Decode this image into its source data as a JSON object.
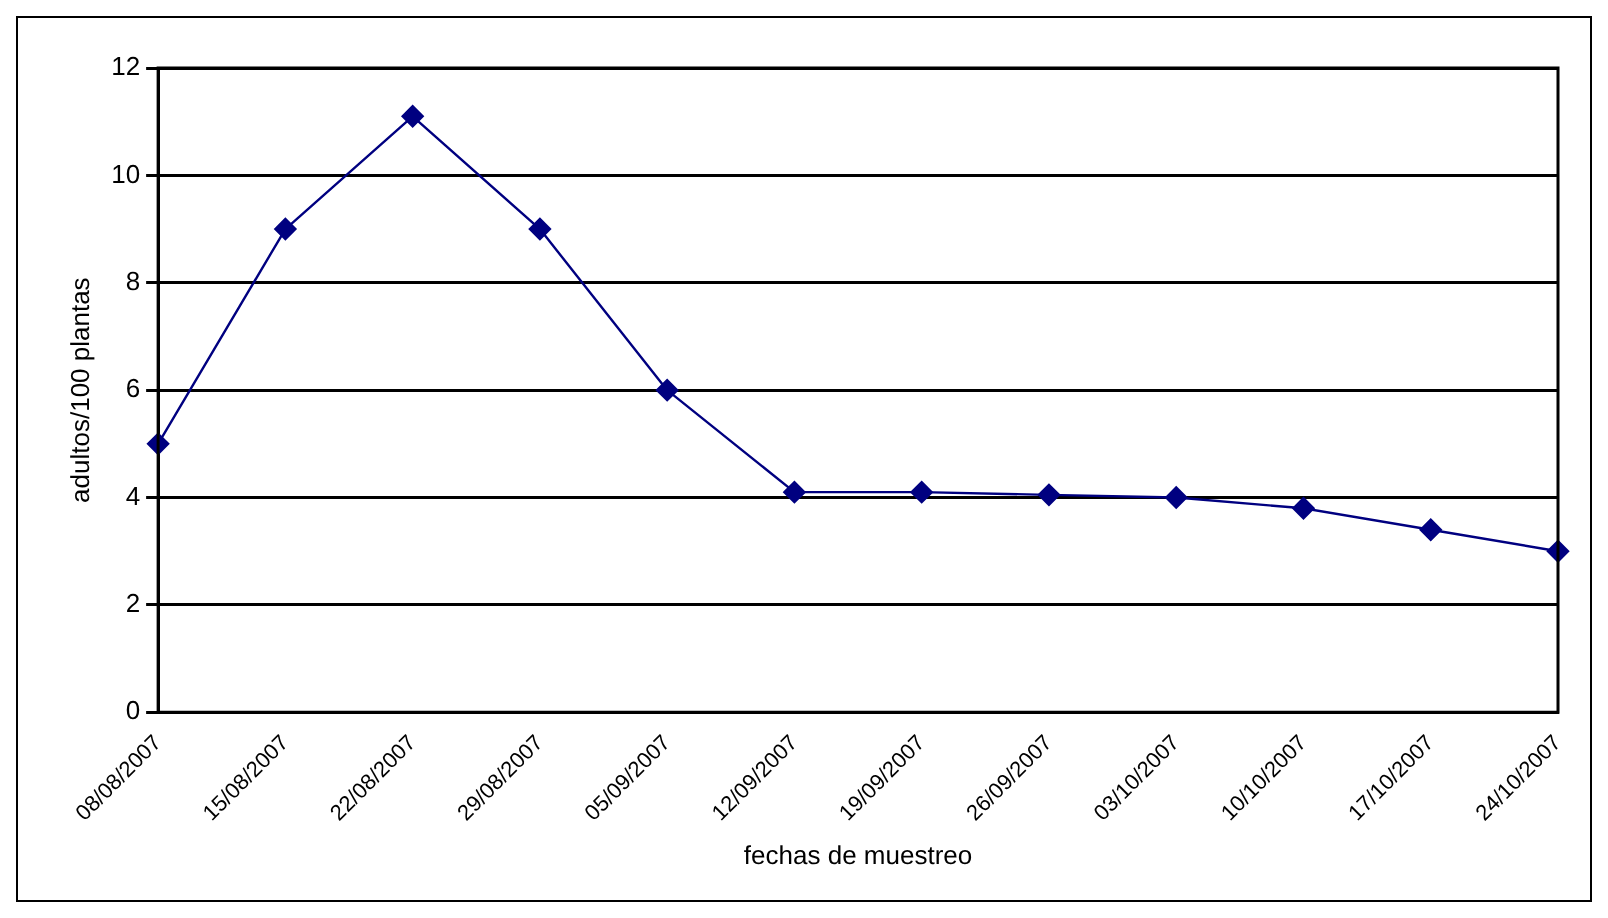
{
  "chart_data": {
    "type": "line",
    "xlabel": "fechas de muestreo",
    "ylabel": "adultos/100 plantas",
    "categories": [
      "08/08/2007",
      "15/08/2007",
      "22/08/2007",
      "29/08/2007",
      "05/09/2007",
      "12/09/2007",
      "19/09/2007",
      "26/09/2007",
      "03/10/2007",
      "10/10/2007",
      "17/10/2007",
      "24/10/2007"
    ],
    "series": [
      {
        "color": "#000080",
        "values": [
          5,
          9,
          11.1,
          9,
          6,
          4.1,
          4.1,
          4.05,
          4,
          3.8,
          3.4,
          3
        ]
      }
    ],
    "ylim": [
      0,
      12
    ],
    "yticks": [
      0,
      2,
      4,
      6,
      8,
      10,
      12
    ],
    "grid": "y",
    "legend": false,
    "marker": "diamond",
    "line_style": "solid"
  }
}
